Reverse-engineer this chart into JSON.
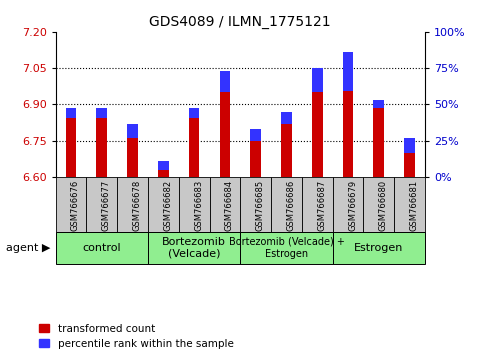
{
  "title": "GDS4089 / ILMN_1775121",
  "samples": [
    "GSM766676",
    "GSM766677",
    "GSM766678",
    "GSM766682",
    "GSM766683",
    "GSM766684",
    "GSM766685",
    "GSM766686",
    "GSM766687",
    "GSM766679",
    "GSM766680",
    "GSM766681"
  ],
  "bar_tops": [
    6.885,
    6.885,
    6.82,
    6.665,
    6.885,
    7.04,
    6.8,
    6.87,
    7.05,
    7.115,
    6.92,
    6.76
  ],
  "blue_tops": [
    6.845,
    6.845,
    6.76,
    6.63,
    6.845,
    6.95,
    6.748,
    6.82,
    6.95,
    6.955,
    6.885,
    6.7
  ],
  "baseline": 6.6,
  "ylim": [
    6.6,
    7.2
  ],
  "yticks_left": [
    6.6,
    6.75,
    6.9,
    7.05,
    7.2
  ],
  "yticks_right_vals": [
    0,
    25,
    50,
    75,
    100
  ],
  "yticks_right_labels": [
    "0%",
    "25%",
    "50%",
    "75%",
    "100%"
  ],
  "grid_lines": [
    6.75,
    6.9,
    7.05
  ],
  "groups": [
    {
      "label": "control",
      "start": 0,
      "end": 2
    },
    {
      "label": "Bortezomib\n(Velcade)",
      "start": 3,
      "end": 5
    },
    {
      "label": "Bortezomib (Velcade) +\nEstrogen",
      "start": 6,
      "end": 8
    },
    {
      "label": "Estrogen",
      "start": 9,
      "end": 11
    }
  ],
  "group_color": "#90EE90",
  "bar_color": "#CC0000",
  "blue_color": "#3333FF",
  "bar_width": 0.35,
  "tick_bg_color": "#C8C8C8",
  "left_label_color": "#CC0000",
  "right_label_color": "#0000CC"
}
